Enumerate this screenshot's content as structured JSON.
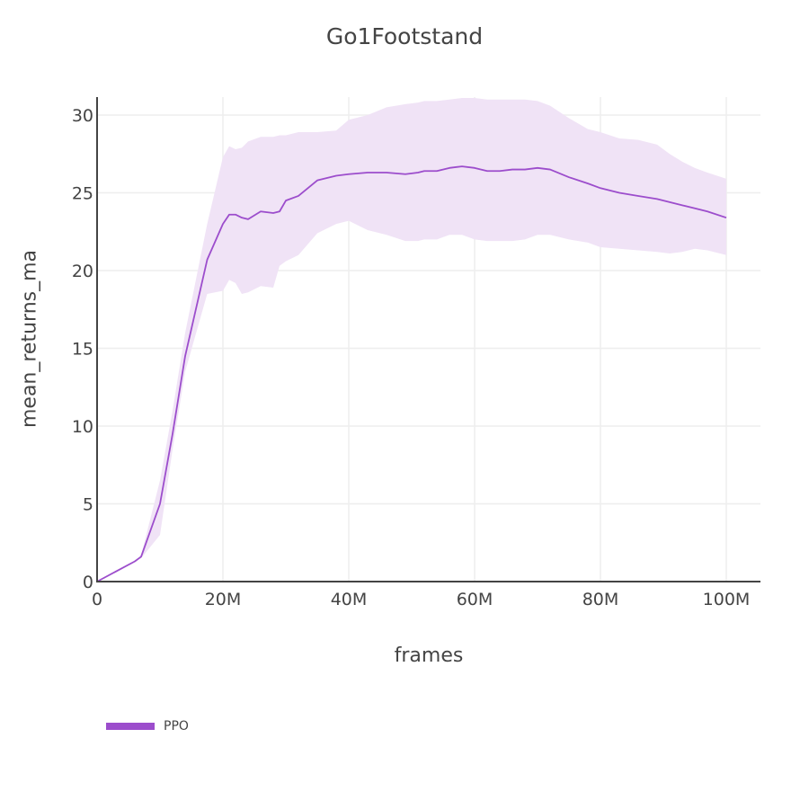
{
  "chart_data": {
    "type": "line",
    "title": "Go1Footstand",
    "xlabel": "frames",
    "ylabel": "mean_returns_ma",
    "xlim": [
      0,
      105000000
    ],
    "ylim": [
      0,
      31
    ],
    "x_ticks": [
      0,
      20000000,
      40000000,
      60000000,
      80000000,
      100000000
    ],
    "x_tick_labels": [
      "0",
      "20M",
      "40M",
      "60M",
      "80M",
      "100M"
    ],
    "y_ticks": [
      0,
      5,
      10,
      15,
      20,
      25,
      30
    ],
    "y_tick_labels": [
      "0",
      "5",
      "10",
      "15",
      "20",
      "25",
      "30"
    ],
    "grid": true,
    "legend_position": "bottom-left",
    "series": [
      {
        "name": "PPO",
        "color": "#9c4dcc",
        "band_color": "#f0e3f6",
        "x": [
          0,
          6,
          7,
          10,
          12,
          14,
          17.5,
          20,
          21,
          22,
          23,
          24,
          26,
          28,
          29,
          30,
          32,
          35,
          38,
          40,
          43,
          46,
          49,
          51,
          52,
          54,
          56,
          58,
          60,
          62,
          64,
          66,
          68,
          70,
          72,
          75,
          78,
          80,
          83,
          86,
          89,
          91,
          93,
          95,
          97,
          100
        ],
        "mean": [
          0,
          1.3,
          1.6,
          5.0,
          9.5,
          14.5,
          20.7,
          23.0,
          23.6,
          23.6,
          23.4,
          23.3,
          23.8,
          23.7,
          23.8,
          24.5,
          24.8,
          25.8,
          26.1,
          26.2,
          26.3,
          26.3,
          26.2,
          26.3,
          26.4,
          26.4,
          26.6,
          26.7,
          26.6,
          26.4,
          26.4,
          26.5,
          26.5,
          26.6,
          26.5,
          26.0,
          25.6,
          25.3,
          25.0,
          24.8,
          24.6,
          24.4,
          24.2,
          24.0,
          23.8,
          23.4
        ],
        "low": [
          0,
          1.3,
          1.5,
          3.0,
          8.5,
          13.5,
          18.5,
          18.7,
          19.4,
          19.2,
          18.5,
          18.6,
          19.0,
          18.9,
          20.3,
          20.6,
          21.0,
          22.4,
          23.0,
          23.2,
          22.6,
          22.3,
          21.9,
          21.9,
          22.0,
          22.0,
          22.3,
          22.3,
          22.0,
          21.9,
          21.9,
          21.9,
          22.0,
          22.3,
          22.3,
          22.0,
          21.8,
          21.5,
          21.4,
          21.3,
          21.2,
          21.1,
          21.2,
          21.4,
          21.3,
          21.0
        ],
        "high": [
          0,
          1.3,
          1.7,
          6.5,
          11.0,
          16.0,
          23.0,
          27.3,
          28.0,
          27.8,
          27.9,
          28.3,
          28.6,
          28.6,
          28.7,
          28.7,
          28.9,
          28.9,
          29.0,
          29.7,
          30.0,
          30.5,
          30.7,
          30.8,
          30.9,
          30.9,
          31.0,
          31.1,
          31.1,
          31.0,
          31.0,
          31.0,
          31.0,
          30.9,
          30.6,
          29.8,
          29.1,
          28.9,
          28.5,
          28.4,
          28.1,
          27.5,
          27.0,
          26.6,
          26.3,
          25.9
        ]
      }
    ]
  },
  "legend": {
    "items": [
      {
        "label": "PPO",
        "color": "#9c4dcc"
      }
    ]
  }
}
